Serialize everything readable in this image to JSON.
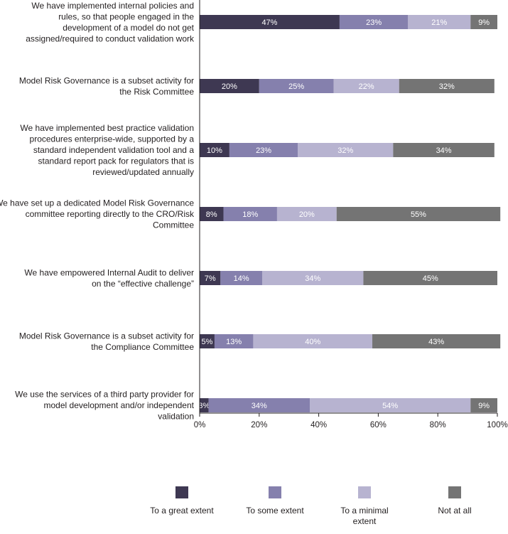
{
  "chart_data": {
    "type": "bar",
    "orientation": "horizontal",
    "stacked": true,
    "title": "",
    "xlabel": "",
    "ylabel": "",
    "xlim": [
      0,
      100
    ],
    "x_ticks": [
      "0%",
      "20%",
      "40%",
      "60%",
      "80%",
      "100%"
    ],
    "grid": false,
    "legend_position": "bottom",
    "categories": [
      "We have implemented internal policies and rules, so that people engaged in the development of a model do not get assigned/required to conduct validation work",
      "Model Risk Governance is a subset activity for the Risk Committee",
      "We have implemented best practice validation procedures enterprise-wide, supported by a standard independent validation tool and a standard report pack for regulators that is reviewed/updated annually",
      "We have set up a dedicated Model Risk Governance committee reporting directly to the CRO/Risk Committee",
      "We have empowered Internal Audit to deliver on the “effective challenge”",
      "Model Risk Governance is a subset activity for the Compliance Committee",
      "We use the services of a third party provider for model development and/or independent validation"
    ],
    "category_lines": [
      [
        "We have implemented internal policies and",
        "rules, so that people engaged in the",
        "development of a model do not get",
        "assigned/required to conduct validation work"
      ],
      [
        "Model Risk Governance is a subset activity for",
        "the Risk Committee"
      ],
      [
        "We have implemented best practice validation",
        "procedures enterprise-wide, supported by a",
        "standard independent validation tool and a",
        "standard report pack for regulators that is",
        "reviewed/updated annually"
      ],
      [
        "We have set up a dedicated Model Risk Governance",
        "committee reporting directly to the CRO/Risk",
        "Committee"
      ],
      [
        "We have empowered Internal Audit to deliver",
        "on the “effective challenge”"
      ],
      [
        "Model Risk Governance is a subset activity for",
        "the Compliance Committee"
      ],
      [
        "We use the services of a third party provider for",
        "model development and/or independent",
        "validation"
      ]
    ],
    "series": [
      {
        "name": "To a great extent",
        "legend_lines": [
          "To a great extent"
        ],
        "color": "#3e3852",
        "values": [
          47,
          20,
          10,
          8,
          7,
          5,
          3
        ]
      },
      {
        "name": "To some extent",
        "legend_lines": [
          "To some extent"
        ],
        "color": "#8580ad",
        "values": [
          23,
          25,
          23,
          18,
          14,
          13,
          34
        ]
      },
      {
        "name": "To a minimal extent",
        "legend_lines": [
          "To a minimal",
          "extent"
        ],
        "color": "#b7b3d0",
        "values": [
          21,
          22,
          32,
          20,
          34,
          40,
          54
        ]
      },
      {
        "name": "Not at all",
        "legend_lines": [
          "Not at all"
        ],
        "color": "#747474",
        "values": [
          9,
          32,
          34,
          55,
          45,
          43,
          9
        ]
      }
    ]
  }
}
